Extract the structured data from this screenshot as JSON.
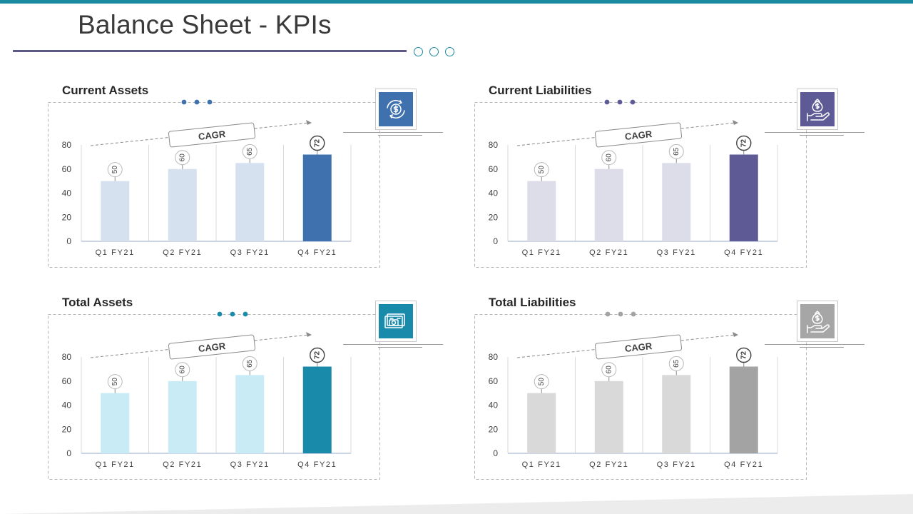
{
  "title": "Balance Sheet - KPIs",
  "colors": {
    "top_bar": "#1a8aa0",
    "title_rule": "#5e5a87"
  },
  "chart_data": [
    {
      "type": "bar",
      "title": "Current Assets",
      "categories": [
        "Q1 FY21",
        "Q2 FY21",
        "Q3 FY21",
        "Q4 FY21"
      ],
      "values": [
        50,
        60,
        65,
        72
      ],
      "yticks": [
        0,
        20,
        40,
        60,
        80
      ],
      "ylim": [
        0,
        80
      ],
      "annotation": "CAGR",
      "icon": "currency-exchange-icon",
      "colors": {
        "bar": "#d6e1ef",
        "highlight": "#3e71ad",
        "dots": "#3e71ad",
        "tile": "#3e71ad"
      }
    },
    {
      "type": "bar",
      "title": "Current Liabilities",
      "categories": [
        "Q1 FY21",
        "Q2 FY21",
        "Q3 FY21",
        "Q4 FY21"
      ],
      "values": [
        50,
        60,
        65,
        72
      ],
      "yticks": [
        0,
        20,
        40,
        60,
        80
      ],
      "ylim": [
        0,
        80
      ],
      "annotation": "CAGR",
      "icon": "hand-money-bag-icon",
      "colors": {
        "bar": "#dddde9",
        "highlight": "#5e5a96",
        "dots": "#5e5a96",
        "tile": "#5e5a96"
      }
    },
    {
      "type": "bar",
      "title": "Total Assets",
      "categories": [
        "Q1 FY21",
        "Q2 FY21",
        "Q3 FY21",
        "Q4 FY21"
      ],
      "values": [
        50,
        60,
        65,
        72
      ],
      "yticks": [
        0,
        20,
        40,
        60,
        80
      ],
      "ylim": [
        0,
        80
      ],
      "annotation": "CAGR",
      "icon": "cash-stack-icon",
      "colors": {
        "bar": "#c9ebf6",
        "highlight": "#1a8aab",
        "dots": "#1a8aab",
        "tile": "#1a8aab"
      }
    },
    {
      "type": "bar",
      "title": "Total Liabilities",
      "categories": [
        "Q1 FY21",
        "Q2 FY21",
        "Q3 FY21",
        "Q4 FY21"
      ],
      "values": [
        50,
        60,
        65,
        72
      ],
      "yticks": [
        0,
        20,
        40,
        60,
        80
      ],
      "ylim": [
        0,
        80
      ],
      "annotation": "CAGR",
      "icon": "hand-money-bag-icon",
      "colors": {
        "bar": "#d9d9d9",
        "highlight": "#a3a3a3",
        "dots": "#a3a3a3",
        "tile": "#a6a6a6"
      }
    }
  ]
}
